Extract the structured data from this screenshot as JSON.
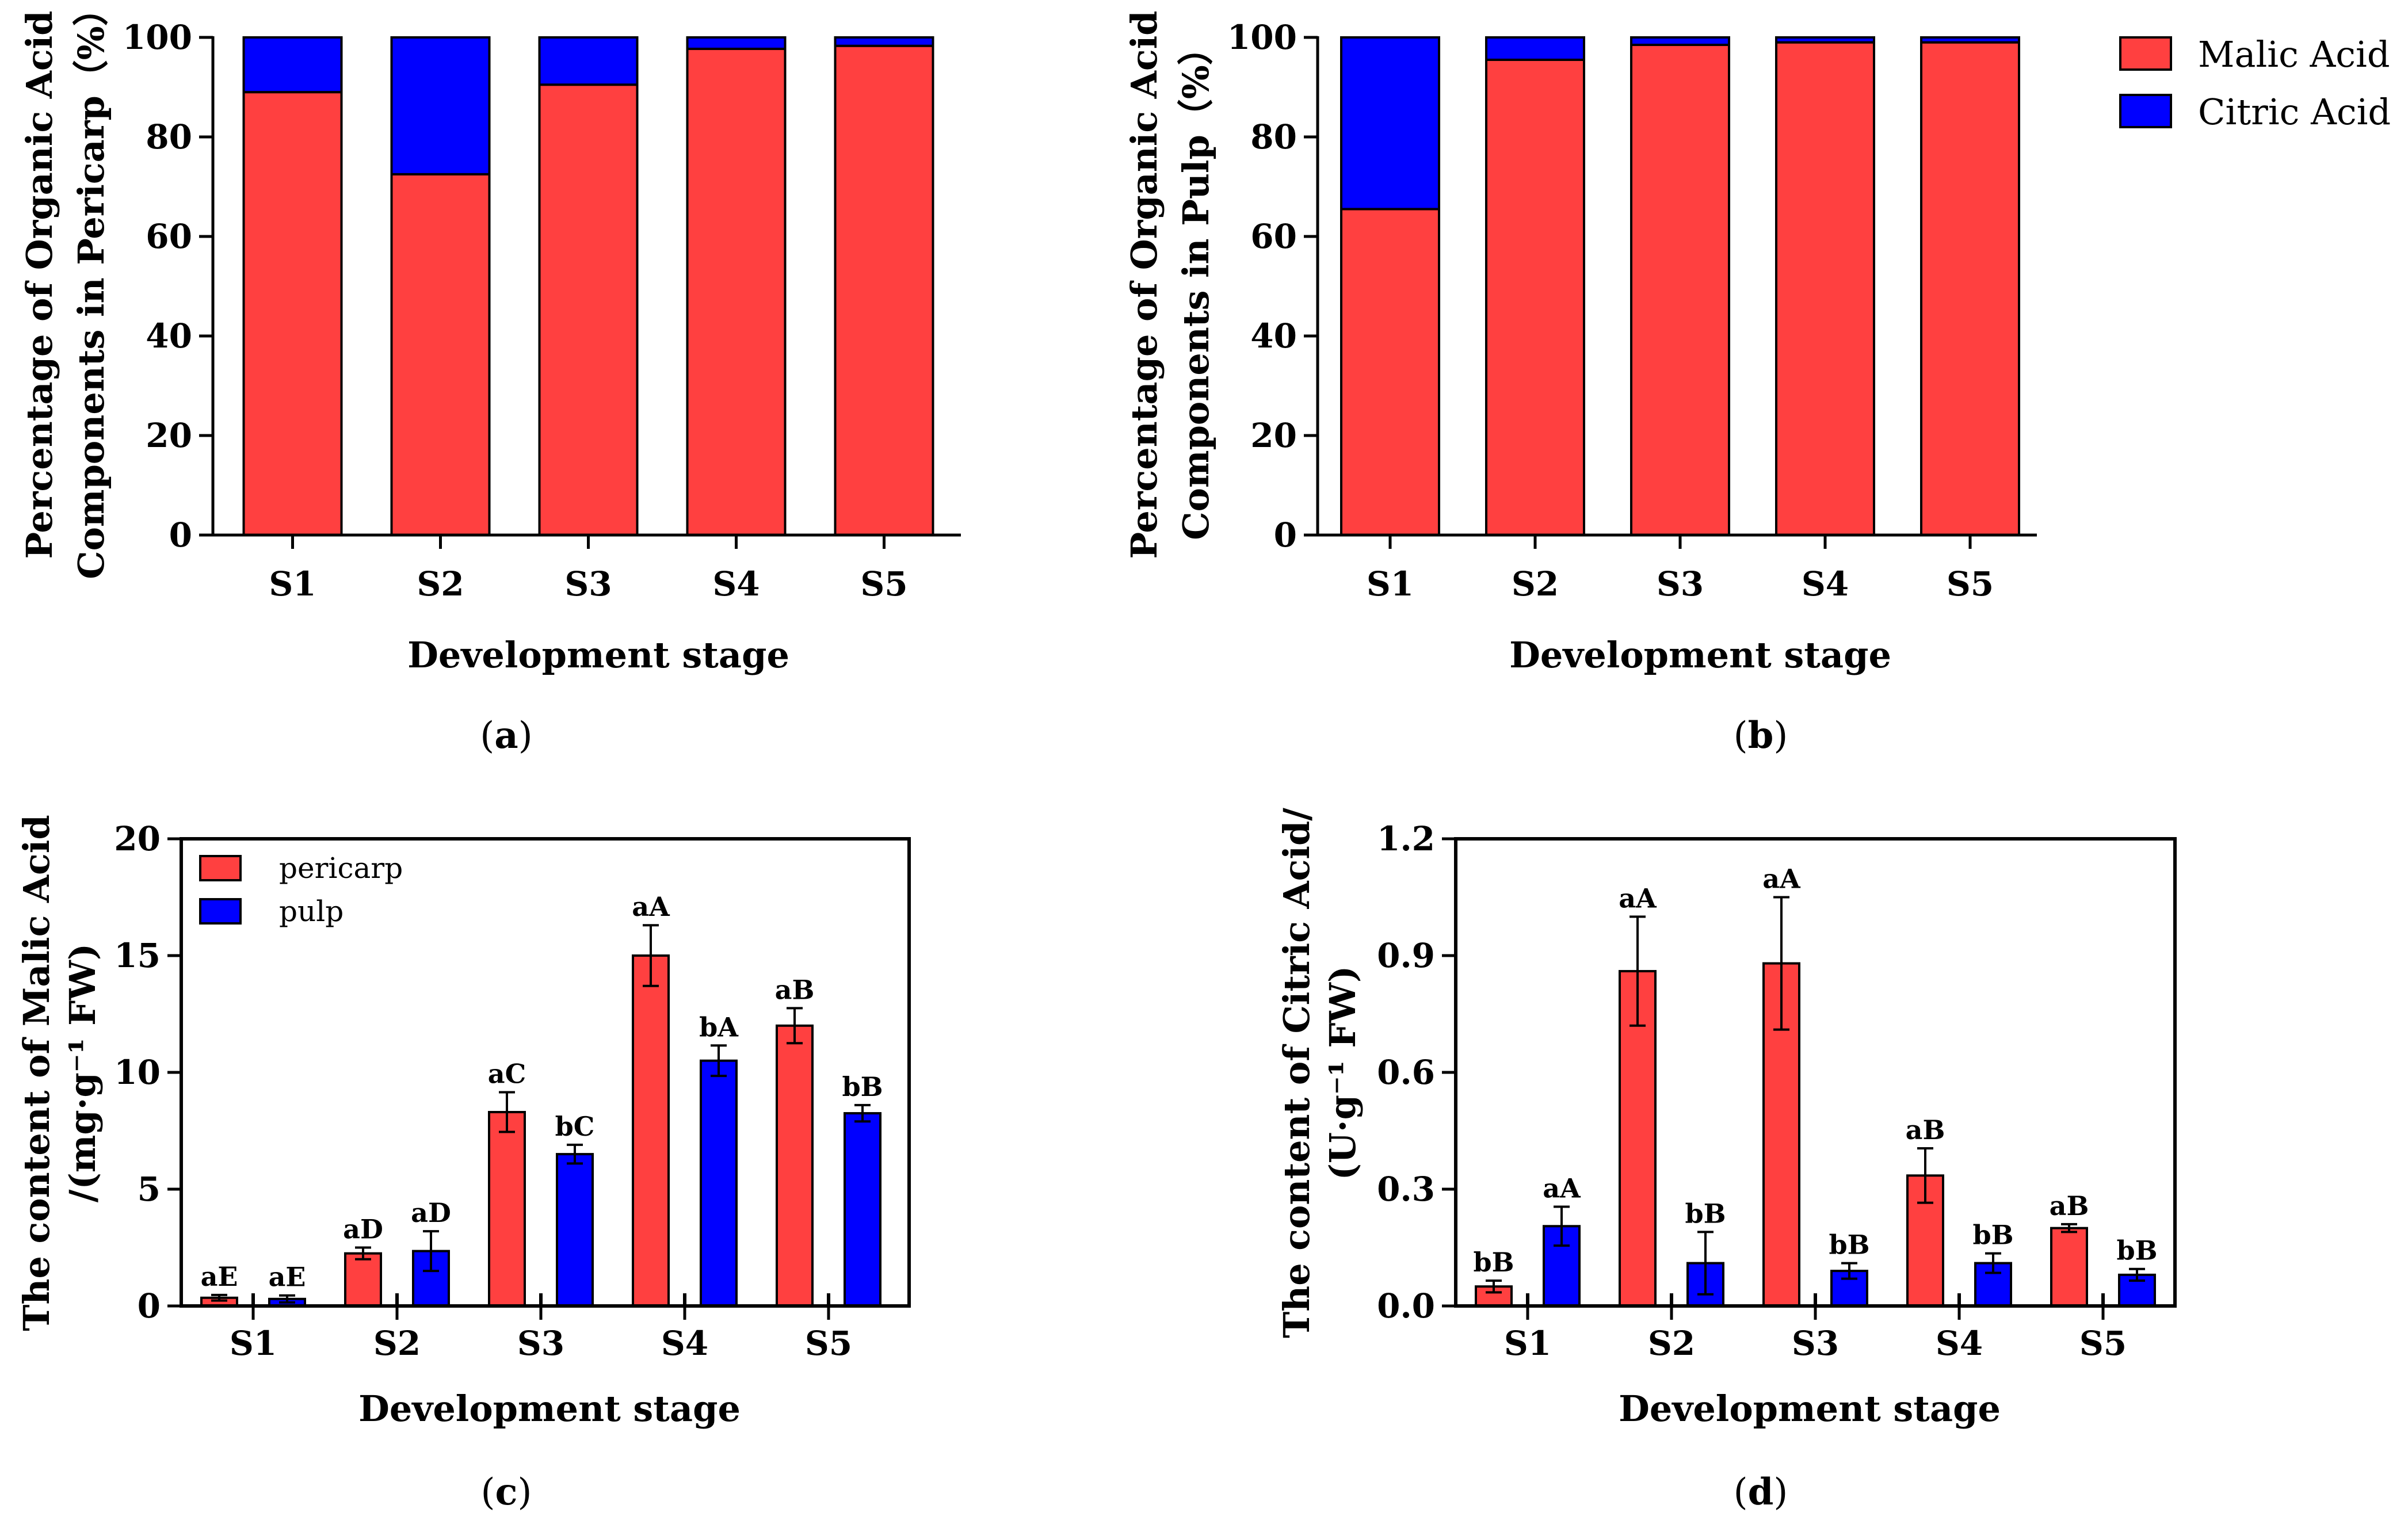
{
  "colors": {
    "malic": "#ff4040",
    "citric": "#0000ff",
    "axis": "#000000"
  },
  "chart_data": [
    {
      "id": "a",
      "type": "bar",
      "stacked": true,
      "panel_label": "(a)",
      "panel_letter": "a",
      "categories": [
        "S1",
        "S2",
        "S3",
        "S4",
        "S5"
      ],
      "series": [
        {
          "name": "Malic Acid",
          "values": [
            89,
            72.5,
            90.5,
            97.7,
            98.3
          ]
        },
        {
          "name": "Citric Acid",
          "values": [
            11,
            27.5,
            9.5,
            2.3,
            1.7
          ]
        }
      ],
      "xlabel": "Development stage",
      "ylabel_lines": [
        "Percentage of Organic Acid",
        "Components in Pericarp（%）"
      ],
      "ylim": [
        0,
        100
      ],
      "yticks": [
        "0",
        "20",
        "40",
        "60",
        "80",
        "100"
      ]
    },
    {
      "id": "b",
      "type": "bar",
      "stacked": true,
      "panel_label": "(b)",
      "panel_letter": "b",
      "categories": [
        "S1",
        "S2",
        "S3",
        "S4",
        "S5"
      ],
      "series": [
        {
          "name": "Malic Acid",
          "values": [
            65.5,
            95.5,
            98.5,
            99,
            99
          ]
        },
        {
          "name": "Citric Acid",
          "values": [
            34.5,
            4.5,
            1.5,
            1,
            1
          ]
        }
      ],
      "legend": [
        "Malic Acid",
        "Citric Acid"
      ],
      "xlabel": "Development stage",
      "ylabel_lines": [
        "Percentage of Organic Acid",
        "Components in Pulp（%）"
      ],
      "ylim": [
        0,
        100
      ],
      "yticks": [
        "0",
        "20",
        "40",
        "60",
        "80",
        "100"
      ]
    },
    {
      "id": "c",
      "type": "bar",
      "stacked": false,
      "panel_label": "(c)",
      "panel_letter": "c",
      "categories": [
        "S1",
        "S2",
        "S3",
        "S4",
        "S5"
      ],
      "series": [
        {
          "name": "pericarp",
          "values": [
            0.35,
            2.25,
            8.3,
            15.0,
            12.0
          ],
          "errors": [
            0.12,
            0.25,
            0.85,
            1.3,
            0.75
          ],
          "labels": [
            "aE",
            "aD",
            "aC",
            "aA",
            "aB"
          ]
        },
        {
          "name": "pulp",
          "values": [
            0.3,
            2.35,
            6.5,
            10.5,
            8.25
          ],
          "errors": [
            0.15,
            0.85,
            0.4,
            0.65,
            0.35
          ],
          "labels": [
            "aE",
            "aD",
            "bC",
            "bA",
            "bB"
          ]
        }
      ],
      "legend": [
        "pericarp",
        "pulp"
      ],
      "xlabel": "Development stage",
      "ylabel_lines": [
        "The content of Malic Acid",
        "/(mg·g⁻¹ FW)"
      ],
      "ylim": [
        0,
        20
      ],
      "yticks": [
        "0",
        "5",
        "10",
        "15",
        "20"
      ]
    },
    {
      "id": "d",
      "type": "bar",
      "stacked": false,
      "panel_label": "(d)",
      "panel_letter": "d",
      "categories": [
        "S1",
        "S2",
        "S3",
        "S4",
        "S5"
      ],
      "series": [
        {
          "name": "pericarp",
          "values": [
            0.05,
            0.86,
            0.88,
            0.335,
            0.2
          ],
          "errors": [
            0.015,
            0.14,
            0.17,
            0.07,
            0.01
          ],
          "labels": [
            "bB",
            "aA",
            "aA",
            "aB",
            "aB"
          ]
        },
        {
          "name": "pulp",
          "values": [
            0.205,
            0.11,
            0.09,
            0.11,
            0.08
          ],
          "errors": [
            0.05,
            0.08,
            0.02,
            0.025,
            0.015
          ],
          "labels": [
            "aA",
            "bB",
            "bB",
            "bB",
            "bB"
          ]
        }
      ],
      "xlabel": "Development stage",
      "ylabel_lines": [
        "The content of Citric Acid/",
        "(U·g⁻¹ FW)"
      ],
      "ylim": [
        0,
        1.2
      ],
      "yticks": [
        "0.0",
        "0.3",
        "0.6",
        "0.9",
        "1.2"
      ]
    }
  ]
}
